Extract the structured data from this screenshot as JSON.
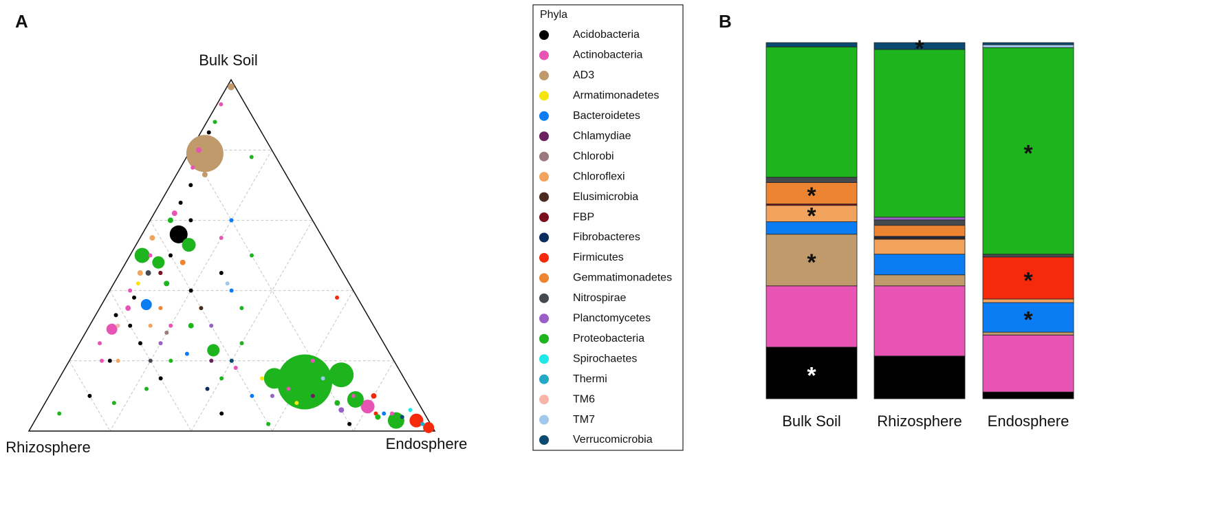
{
  "panel_labels": {
    "a": "A",
    "b": "B"
  },
  "legend_title": "Phyla",
  "chart_data": [
    {
      "type": "ternary",
      "axes": [
        "Bulk Soil",
        "Rhizosphere",
        "Endosphere"
      ],
      "grid": true,
      "ticks": [
        0.2,
        0.4,
        0.6,
        0.8
      ],
      "series": [
        {
          "name": "Acidobacteria",
          "color": "#000000",
          "values": [
            [
              0.56,
              0.35,
              0.09
            ],
            [
              0.85,
              0.13,
              0.02
            ],
            [
              0.7,
              0.25,
              0.05
            ],
            [
              0.6,
              0.3,
              0.1
            ],
            [
              0.45,
              0.45,
              0.1
            ],
            [
              0.38,
              0.55,
              0.07
            ],
            [
              0.3,
              0.6,
              0.1
            ],
            [
              0.25,
              0.6,
              0.15
            ],
            [
              0.2,
              0.7,
              0.1
            ],
            [
              0.15,
              0.6,
              0.25
            ],
            [
              0.1,
              0.8,
              0.1
            ],
            [
              0.05,
              0.5,
              0.45
            ],
            [
              0.4,
              0.4,
              0.2
            ],
            [
              0.5,
              0.4,
              0.1
            ],
            [
              0.65,
              0.3,
              0.05
            ],
            [
              0.3,
              0.45,
              0.25
            ],
            [
              0.02,
              0.2,
              0.78
            ],
            [
              0.45,
              0.3,
              0.25
            ],
            [
              0.33,
              0.62,
              0.05
            ]
          ],
          "sizes": [
            13,
            3,
            3,
            3,
            3,
            3,
            3,
            3,
            3,
            3,
            3,
            3,
            3,
            3,
            3,
            3,
            3,
            3,
            3
          ]
        },
        {
          "name": "Actinobacteria",
          "color": "#e754b4",
          "values": [
            [
              0.29,
              0.65,
              0.06
            ],
            [
              0.07,
              0.13,
              0.8
            ],
            [
              0.93,
              0.06,
              0.01
            ],
            [
              0.8,
              0.18,
              0.02
            ],
            [
              0.75,
              0.22,
              0.03
            ],
            [
              0.62,
              0.33,
              0.05
            ],
            [
              0.5,
              0.45,
              0.05
            ],
            [
              0.4,
              0.55,
              0.05
            ],
            [
              0.35,
              0.58,
              0.07
            ],
            [
              0.25,
              0.7,
              0.05
            ],
            [
              0.2,
              0.72,
              0.08
            ],
            [
              0.18,
              0.4,
              0.42
            ],
            [
              0.12,
              0.3,
              0.58
            ],
            [
              0.2,
              0.2,
              0.6
            ],
            [
              0.1,
              0.15,
              0.75
            ],
            [
              0.05,
              0.08,
              0.87
            ],
            [
              0.55,
              0.25,
              0.2
            ],
            [
              0.3,
              0.5,
              0.2
            ]
          ],
          "sizes": [
            8,
            10,
            3,
            4,
            3,
            4,
            3,
            3,
            4,
            3,
            3,
            3,
            3,
            3,
            3,
            3,
            3,
            3
          ]
        },
        {
          "name": "AD3",
          "color": "#c09a6b",
          "values": [
            [
              0.79,
              0.17,
              0.04
            ],
            [
              0.98,
              0.01,
              0.01
            ],
            [
              0.73,
              0.2,
              0.07
            ]
          ],
          "sizes": [
            27,
            5,
            4
          ]
        },
        {
          "name": "Armatimonadetes",
          "color": "#f5e50a",
          "values": [
            [
              0.15,
              0.35,
              0.5
            ],
            [
              0.08,
              0.3,
              0.62
            ],
            [
              0.42,
              0.52,
              0.06
            ]
          ],
          "sizes": [
            3,
            3,
            3
          ]
        },
        {
          "name": "Bacteroidetes",
          "color": "#0b7cf2",
          "values": [
            [
              0.36,
              0.53,
              0.11
            ],
            [
              0.4,
              0.3,
              0.3
            ],
            [
              0.15,
              0.2,
              0.65
            ],
            [
              0.05,
              0.1,
              0.85
            ],
            [
              0.22,
              0.5,
              0.28
            ],
            [
              0.6,
              0.2,
              0.2
            ],
            [
              0.1,
              0.4,
              0.5
            ]
          ],
          "sizes": [
            8,
            3,
            3,
            3,
            3,
            3,
            3
          ]
        },
        {
          "name": "Chlamydiae",
          "color": "#6b2060",
          "values": [
            [
              0.2,
              0.45,
              0.35
            ],
            [
              0.1,
              0.25,
              0.65
            ]
          ],
          "sizes": [
            3,
            3
          ]
        },
        {
          "name": "Chlorobi",
          "color": "#9a7a7c",
          "values": [
            [
              0.28,
              0.52,
              0.2
            ]
          ],
          "sizes": [
            3
          ]
        },
        {
          "name": "Chloroflexi",
          "color": "#f2a35e",
          "values": [
            [
              0.55,
              0.42,
              0.03
            ],
            [
              0.3,
              0.55,
              0.15
            ],
            [
              0.2,
              0.68,
              0.12
            ],
            [
              0.45,
              0.5,
              0.05
            ]
          ],
          "sizes": [
            4,
            3,
            3,
            4
          ]
        },
        {
          "name": "Elusimicrobia",
          "color": "#4a2a1e",
          "values": [
            [
              0.35,
              0.4,
              0.25
            ]
          ],
          "sizes": [
            3
          ]
        },
        {
          "name": "FBP",
          "color": "#7a1020",
          "values": [
            [
              0.45,
              0.45,
              0.1
            ]
          ],
          "sizes": [
            3
          ]
        },
        {
          "name": "Fibrobacteres",
          "color": "#0a2d5e",
          "values": [
            [
              0.12,
              0.5,
              0.38
            ]
          ],
          "sizes": [
            3
          ]
        },
        {
          "name": "Firmicutes",
          "color": "#f52a0c",
          "values": [
            [
              0.03,
              0.03,
              0.94
            ],
            [
              0.01,
              0.01,
              0.98
            ],
            [
              0.38,
              0.05,
              0.57
            ],
            [
              0.1,
              0.1,
              0.8
            ],
            [
              0.05,
              0.12,
              0.83
            ]
          ],
          "sizes": [
            10,
            8,
            3,
            4,
            3
          ]
        },
        {
          "name": "Gemmatimonadetes",
          "color": "#ed8432",
          "values": [
            [
              0.48,
              0.38,
              0.14
            ],
            [
              0.35,
              0.5,
              0.15
            ]
          ],
          "sizes": [
            4,
            3
          ]
        },
        {
          "name": "Nitrospirae",
          "color": "#454a50",
          "values": [
            [
              0.45,
              0.48,
              0.07
            ],
            [
              0.2,
              0.6,
              0.2
            ]
          ],
          "sizes": [
            4,
            3
          ]
        },
        {
          "name": "Planctomycetes",
          "color": "#9b5fc8",
          "values": [
            [
              0.25,
              0.55,
              0.2
            ],
            [
              0.1,
              0.35,
              0.55
            ],
            [
              0.3,
              0.4,
              0.3
            ],
            [
              0.06,
              0.2,
              0.74
            ]
          ],
          "sizes": [
            3,
            3,
            3,
            4
          ]
        },
        {
          "name": "Proteobacteria",
          "color": "#1db41d",
          "values": [
            [
              0.14,
              0.25,
              0.61
            ],
            [
              0.16,
              0.15,
              0.69
            ],
            [
              0.15,
              0.32,
              0.53
            ],
            [
              0.09,
              0.15,
              0.76
            ],
            [
              0.03,
              0.08,
              0.89
            ],
            [
              0.5,
              0.47,
              0.03
            ],
            [
              0.53,
              0.34,
              0.13
            ],
            [
              0.48,
              0.44,
              0.08
            ],
            [
              0.23,
              0.43,
              0.34
            ],
            [
              0.88,
              0.1,
              0.02
            ],
            [
              0.78,
              0.06,
              0.16
            ],
            [
              0.6,
              0.35,
              0.05
            ],
            [
              0.42,
              0.45,
              0.13
            ],
            [
              0.3,
              0.45,
              0.25
            ],
            [
              0.25,
              0.35,
              0.4
            ],
            [
              0.2,
              0.55,
              0.25
            ],
            [
              0.12,
              0.65,
              0.23
            ],
            [
              0.08,
              0.75,
              0.17
            ],
            [
              0.05,
              0.9,
              0.05
            ],
            [
              0.18,
              0.25,
              0.57
            ],
            [
              0.08,
              0.2,
              0.72
            ],
            [
              0.04,
              0.12,
              0.84
            ],
            [
              0.35,
              0.3,
              0.35
            ],
            [
              0.5,
              0.2,
              0.3
            ],
            [
              0.15,
              0.45,
              0.4
            ],
            [
              0.02,
              0.4,
              0.58
            ]
          ],
          "sizes": [
            40,
            18,
            15,
            12,
            12,
            11,
            10,
            9,
            9,
            3,
            3,
            4,
            4,
            4,
            3,
            3,
            3,
            3,
            3,
            3,
            4,
            4,
            3,
            3,
            3,
            3
          ]
        },
        {
          "name": "Spirochaetes",
          "color": "#1ee8e8",
          "values": [
            [
              0.06,
              0.03,
              0.91
            ]
          ],
          "sizes": [
            3
          ]
        },
        {
          "name": "Thermi",
          "color": "#24a8c8",
          "values": [
            [
              0.02,
              0.02,
              0.96
            ]
          ],
          "sizes": [
            3
          ]
        },
        {
          "name": "TM6",
          "color": "#f8b4a8",
          "values": [
            [
              0.3,
              0.63,
              0.07
            ]
          ],
          "sizes": [
            3
          ]
        },
        {
          "name": "TM7",
          "color": "#a0c8ec",
          "values": [
            [
              0.42,
              0.3,
              0.28
            ],
            [
              0.15,
              0.2,
              0.65
            ]
          ],
          "sizes": [
            3,
            3
          ]
        },
        {
          "name": "Verrucomicrobia",
          "color": "#0a4a70",
          "values": [
            [
              0.2,
              0.4,
              0.4
            ],
            [
              0.04,
              0.06,
              0.9
            ]
          ],
          "sizes": [
            3,
            3
          ]
        }
      ]
    },
    {
      "type": "stacked-bar",
      "categories": [
        "Bulk Soil",
        "Rhizosphere",
        "Endosphere"
      ],
      "ylim": [
        0,
        100
      ],
      "series": [
        {
          "values": [
            14.5,
            12.0,
            1.9
          ],
          "value_labels": [
            "*",
            null,
            null
          ]
        },
        {
          "values": [
            17.2,
            19.7,
            16.0
          ]
        },
        {
          "values": [
            14.5,
            3.1,
            0.8
          ],
          "value_labels": [
            "*",
            null,
            null
          ]
        },
        {
          "values": [
            0,
            0,
            0
          ]
        },
        {
          "values": [
            3.5,
            5.8,
            8.3
          ],
          "value_labels": [
            null,
            null,
            "*"
          ]
        },
        {
          "values": [
            0,
            0,
            0
          ]
        },
        {
          "values": [
            0,
            0,
            0
          ]
        },
        {
          "values": [
            4.6,
            4.2,
            1.0
          ],
          "value_labels": [
            "*",
            null,
            null
          ]
        },
        {
          "values": [
            0,
            0.4,
            0
          ]
        },
        {
          "values": [
            0.4,
            0,
            0
          ]
        },
        {
          "values": [
            0,
            0.4,
            0
          ]
        },
        {
          "values": [
            0,
            0,
            11.8
          ],
          "value_labels": [
            null,
            null,
            "*"
          ]
        },
        {
          "values": [
            6.0,
            3.1,
            0
          ],
          "value_labels": [
            "*",
            null,
            null
          ]
        },
        {
          "values": [
            1.5,
            1.5,
            0.8
          ]
        },
        {
          "values": [
            0,
            0.8,
            0
          ]
        },
        {
          "values": [
            36.6,
            47.1,
            58.0
          ],
          "value_labels": [
            null,
            null,
            "*"
          ]
        },
        {
          "values": [
            0,
            0,
            0
          ]
        },
        {
          "values": [
            0,
            0,
            0
          ]
        },
        {
          "values": [
            0,
            0,
            0
          ]
        },
        {
          "values": [
            0,
            0,
            0.8
          ]
        },
        {
          "values": [
            1.2,
            1.9,
            0.6
          ],
          "value_labels": [
            null,
            "*",
            null
          ]
        }
      ]
    }
  ]
}
